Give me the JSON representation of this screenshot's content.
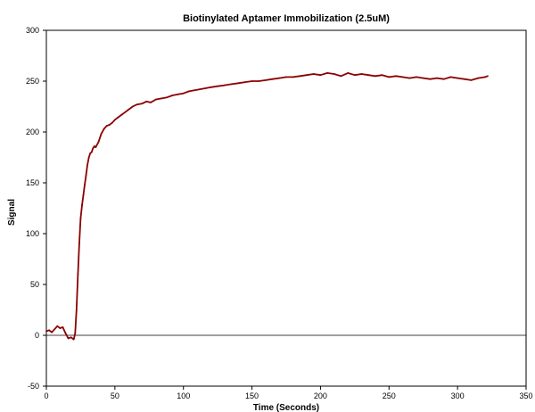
{
  "chart_data": {
    "type": "line",
    "title": "Biotinylated Aptamer Immobilization (2.5uM)",
    "xlabel": "Time (Seconds)",
    "ylabel": "Signal",
    "xlim": [
      0,
      350
    ],
    "ylim": [
      -50,
      300
    ],
    "xticks": [
      "0",
      "50",
      "100",
      "150",
      "200",
      "250",
      "300",
      "350"
    ],
    "yticks": [
      "-50",
      "0",
      "50",
      "100",
      "150",
      "200",
      "250",
      "300"
    ],
    "grid": false,
    "legend": "none",
    "line_color": "#8b0000",
    "series": [
      {
        "x": [
          0,
          2,
          4,
          6,
          8,
          10,
          12,
          14,
          16,
          18,
          20,
          21,
          22,
          23,
          24,
          25,
          26,
          27,
          28,
          29,
          30,
          31,
          32,
          33,
          34,
          35,
          36,
          38,
          40,
          42,
          44,
          46,
          48,
          50,
          52,
          55,
          58,
          60,
          63,
          66,
          70,
          73,
          76,
          80,
          84,
          88,
          92,
          96,
          100,
          104,
          108,
          112,
          116,
          120,
          125,
          130,
          135,
          140,
          145,
          150,
          155,
          160,
          165,
          170,
          175,
          180,
          185,
          190,
          195,
          200,
          205,
          210,
          215,
          220,
          225,
          230,
          235,
          240,
          245,
          250,
          255,
          260,
          265,
          270,
          275,
          280,
          285,
          290,
          295,
          300,
          305,
          310,
          315,
          320,
          322
        ],
        "y": [
          4,
          5,
          3,
          6,
          9,
          7,
          8,
          2,
          -3,
          -2,
          -4,
          2,
          25,
          60,
          90,
          115,
          128,
          138,
          148,
          158,
          168,
          175,
          179,
          180,
          184,
          186,
          185,
          190,
          198,
          203,
          206,
          207,
          209,
          212,
          214,
          217,
          220,
          222,
          225,
          227,
          228,
          230,
          229,
          232,
          233,
          234,
          236,
          237,
          238,
          240,
          241,
          242,
          243,
          244,
          245,
          246,
          247,
          248,
          249,
          250,
          250,
          251,
          252,
          253,
          254,
          254,
          255,
          256,
          257,
          256,
          258,
          257,
          255,
          258,
          256,
          257,
          256,
          255,
          256,
          254,
          255,
          254,
          253,
          254,
          253,
          252,
          253,
          252,
          254,
          253,
          252,
          251,
          253,
          254,
          255
        ]
      }
    ]
  }
}
